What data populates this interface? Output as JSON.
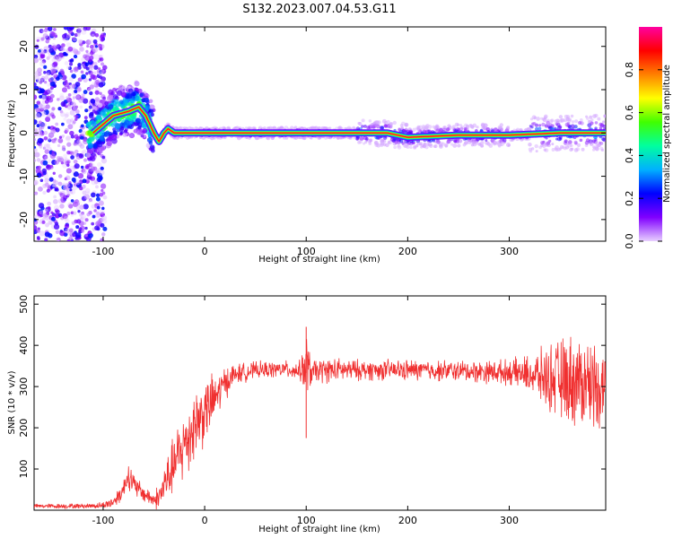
{
  "title": "S132.2023.007.04.53.G11",
  "chart_data": [
    {
      "type": "heatmap",
      "xlabel": "Height of straight line (km)",
      "ylabel": "Frequency (Hz)",
      "xlim": [
        -168,
        395
      ],
      "ylim": [
        -25,
        24.5
      ],
      "xticks": [
        -100,
        0,
        100,
        200,
        300
      ],
      "yticks": [
        -20,
        -10,
        0,
        10,
        20
      ],
      "colorbar": {
        "label": "Normalized spectral amplitude",
        "range": [
          0.0,
          1.0
        ],
        "ticks": [
          0.0,
          0.2,
          0.4,
          0.6,
          0.8
        ],
        "colormap": [
          "#e8d0ff",
          "#8000ff",
          "#0000ff",
          "#00b0ff",
          "#00ffa0",
          "#40ff00",
          "#ffff00",
          "#ff8000",
          "#ff0000",
          "#ff00a0"
        ]
      },
      "ridge": {
        "x": [
          -110,
          -90,
          -75,
          -65,
          -58,
          -50,
          -45,
          -40,
          -36,
          -30,
          -20,
          0,
          50,
          100,
          150,
          180,
          200,
          250,
          300,
          350,
          395
        ],
        "y": [
          0,
          4,
          5,
          6,
          4,
          0,
          -2,
          0,
          1,
          0,
          0,
          0,
          0,
          0,
          0,
          0,
          -1,
          -0.5,
          -0.5,
          0,
          0
        ]
      }
    },
    {
      "type": "line",
      "xlabel": "Height of straight line (km)",
      "ylabel": "SNR (10 * v/v)",
      "xlim": [
        -168,
        395
      ],
      "ylim": [
        0,
        520
      ],
      "xticks": [
        -100,
        0,
        100,
        200,
        300
      ],
      "yticks": [
        100,
        200,
        300,
        400,
        500
      ],
      "color": "#f03030",
      "series": [
        {
          "x": [
            -168,
            -140,
            -120,
            -100,
            -90,
            -80,
            -75,
            -70,
            -60,
            -50,
            -45,
            -40,
            -30,
            -20,
            -10,
            0,
            10,
            20,
            30,
            50,
            80,
            95,
            100,
            105,
            120,
            150,
            200,
            250,
            300,
            320,
            340,
            360,
            380,
            395
          ],
          "y": [
            10,
            10,
            10,
            12,
            20,
            50,
            90,
            60,
            40,
            25,
            30,
            60,
            110,
            160,
            210,
            240,
            270,
            310,
            330,
            340,
            342,
            338,
            345,
            335,
            340,
            340,
            340,
            338,
            335,
            330,
            320,
            315,
            310,
            300
          ],
          "spread": [
            5,
            6,
            6,
            8,
            15,
            25,
            35,
            30,
            20,
            20,
            35,
            50,
            70,
            90,
            90,
            80,
            60,
            40,
            25,
            20,
            20,
            25,
            90,
            30,
            30,
            25,
            25,
            25,
            30,
            45,
            80,
            110,
            110,
            90
          ]
        }
      ]
    }
  ]
}
